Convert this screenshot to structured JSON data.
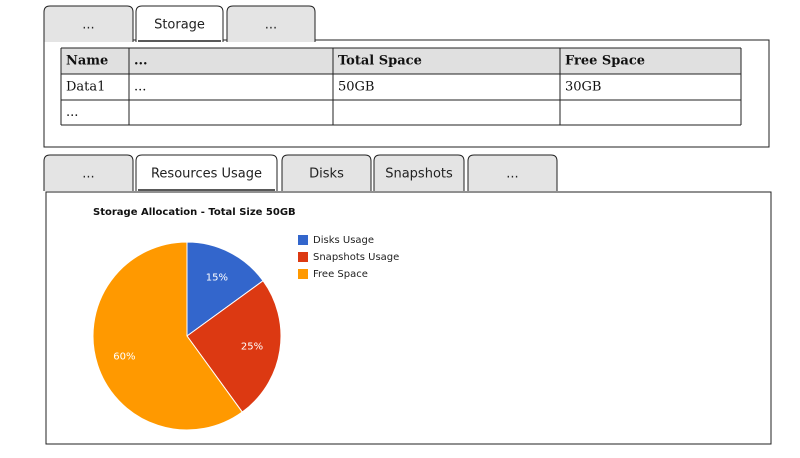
{
  "top_tabs": [
    "...",
    "Storage",
    "..."
  ],
  "table": {
    "header": [
      "Name",
      "...",
      "Total Space",
      "Free Space"
    ],
    "rows": [
      [
        "Data1",
        "...",
        "50GB",
        "30GB"
      ],
      [
        "...",
        null,
        null,
        null
      ]
    ]
  },
  "bottom_tabs": [
    "...",
    "Resources Usage",
    "Disks",
    "Snapshots",
    "..."
  ],
  "chart_data": {
    "type": "pie",
    "title": "Storage Allocation - Total Size 50GB",
    "categories": [
      "Disks Usage",
      "Snapshots Usage",
      "Free Space"
    ],
    "values": [
      15,
      25,
      60
    ],
    "value_labels": [
      "15%",
      "25%",
      "60%"
    ],
    "colors": [
      "#3366cc",
      "#dc3912",
      "#ff9900"
    ],
    "legend": "right"
  }
}
